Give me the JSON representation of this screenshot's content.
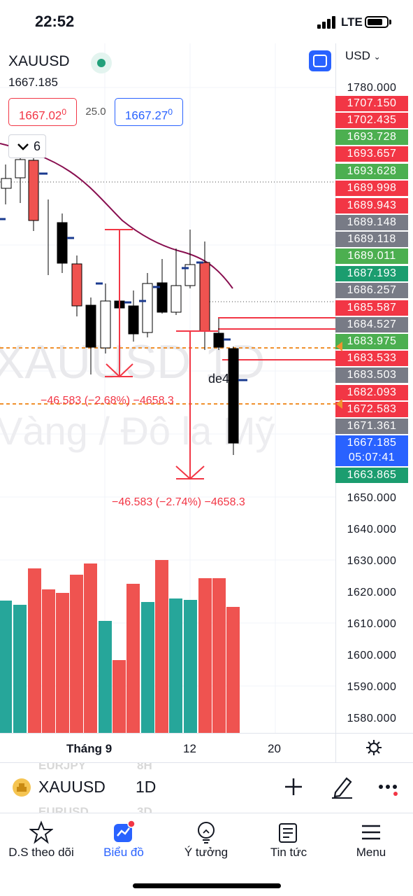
{
  "status_bar": {
    "time": "22:52",
    "network": "LTE"
  },
  "chart": {
    "symbol": "XAUUSD",
    "last_price": "1667.185",
    "sell_price": "1667.02",
    "sell_price_sup": "0",
    "spread": "25.0",
    "buy_price": "1667.27",
    "buy_price_sup": "0",
    "indicator_count": "6",
    "watermark_line1": "XAUUSD 1D",
    "watermark_line2": "Vàng / Đô la Mỹ",
    "annotation_label": "de4",
    "measure_label_1": "−46.583 (−2.68%) −4658.3",
    "measure_label_2": "−46.583 (−2.74%) −4658.3",
    "currency": "USD",
    "colors": {
      "bull": "#26a69a",
      "bear": "#ef5350",
      "red_tag": "#f23645",
      "green_tag": "#4caf50",
      "gray_tag": "#787b86",
      "blue_tag": "#2962ff",
      "teal_tag": "#1b9d6f"
    }
  },
  "price_scale": {
    "plain": [
      "1780.000",
      "1650.000",
      "1640.000",
      "1630.000",
      "1620.000",
      "1610.000",
      "1600.000",
      "1590.000",
      "1580.000"
    ],
    "tags": [
      {
        "value": "1707.150",
        "color": "red"
      },
      {
        "value": "1702.435",
        "color": "red"
      },
      {
        "value": "1693.728",
        "color": "green"
      },
      {
        "value": "1693.657",
        "color": "red"
      },
      {
        "value": "1693.628",
        "color": "green"
      },
      {
        "value": "1689.998",
        "color": "red"
      },
      {
        "value": "1689.943",
        "color": "red"
      },
      {
        "value": "1689.148",
        "color": "gray"
      },
      {
        "value": "1689.118",
        "color": "gray"
      },
      {
        "value": "1689.011",
        "color": "green"
      },
      {
        "value": "1687.193",
        "color": "teal"
      },
      {
        "value": "1686.257",
        "color": "gray"
      },
      {
        "value": "1685.587",
        "color": "red"
      },
      {
        "value": "1684.527",
        "color": "gray"
      },
      {
        "value": "1683.975",
        "color": "green"
      },
      {
        "value": "1683.533",
        "color": "red"
      },
      {
        "value": "1683.503",
        "color": "gray"
      },
      {
        "value": "1682.093",
        "color": "red"
      },
      {
        "value": "1672.583",
        "color": "red"
      },
      {
        "value": "1671.361",
        "color": "gray"
      },
      {
        "value": "1663.865",
        "color": "teal"
      }
    ],
    "current_price": "1667.185",
    "countdown": "05:07:41"
  },
  "time_axis": {
    "labels": [
      "Tháng 9",
      "12",
      "20"
    ]
  },
  "symbol_bar": {
    "symbol": "XAUUSD",
    "interval": "1D",
    "ghost_symbol_1": "EURJPY",
    "ghost_interval_1": "8H",
    "ghost_symbol_2": "EURUSD",
    "ghost_interval_2": "3D"
  },
  "tabs": [
    {
      "label": "D.S theo dõi",
      "icon": "star-icon"
    },
    {
      "label": "Biểu đồ",
      "icon": "chart-icon"
    },
    {
      "label": "Ý tưởng",
      "icon": "lightbulb-icon"
    },
    {
      "label": "Tin tức",
      "icon": "news-icon"
    },
    {
      "label": "Menu",
      "icon": "menu-icon"
    }
  ]
}
